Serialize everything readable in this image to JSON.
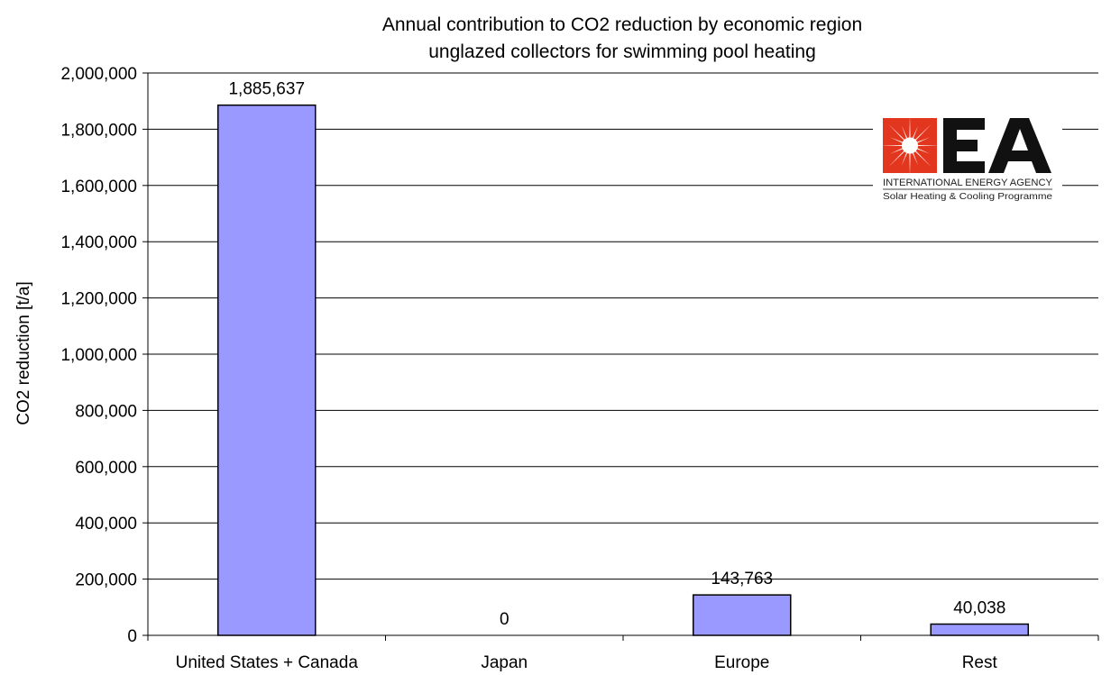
{
  "chart_data": {
    "type": "bar",
    "title": "Annual contribution to CO2 reduction by economic region",
    "subtitle": "unglazed collectors for swimming pool heating",
    "ylabel": "CO2 reduction [t/a]",
    "xlabel": "",
    "categories": [
      "United States + Canada",
      "Japan",
      "Europe",
      "Rest"
    ],
    "values": [
      1885637,
      0,
      143763,
      40038
    ],
    "value_labels": [
      "1,885,637",
      "0",
      "143,763",
      "40,038"
    ],
    "ylim": [
      0,
      2000000
    ],
    "yticks": [
      0,
      200000,
      400000,
      600000,
      800000,
      1000000,
      1200000,
      1400000,
      1600000,
      1800000,
      2000000
    ],
    "ytick_labels": [
      "0",
      "200,000",
      "400,000",
      "600,000",
      "800,000",
      "1,000,000",
      "1,200,000",
      "1,400,000",
      "1,600,000",
      "1,800,000",
      "2,000,000"
    ],
    "grid": true,
    "legend": "none",
    "bar_color": "#9999FF",
    "bar_stroke": "#000000"
  },
  "logo": {
    "mark": "IEA",
    "line1": "INTERNATIONAL ENERGY AGENCY",
    "line2": "Solar Heating & Cooling Programme",
    "accent_color": "#E2361E"
  }
}
